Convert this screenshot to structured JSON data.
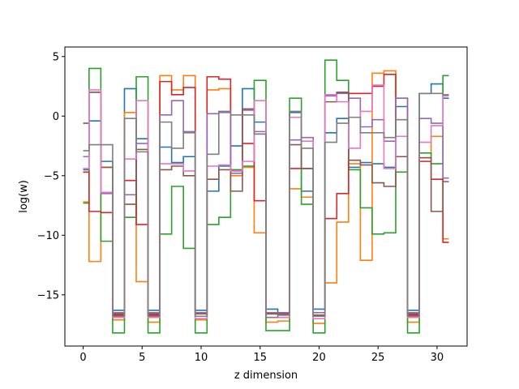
{
  "chart_data": {
    "type": "line",
    "drawstyle": "steps-mid",
    "xlabel": "z dimension",
    "ylabel": "log(w)",
    "xlim": [
      -1.55,
      32.55
    ],
    "ylim": [
      -19.3,
      5.8
    ],
    "xticks": [
      0,
      5,
      10,
      15,
      20,
      25,
      30
    ],
    "yticks": [
      5,
      0,
      -5,
      -10,
      -15
    ],
    "ytick_labels": [
      "5",
      "0",
      "−5",
      "−10",
      "−15"
    ],
    "grid": false,
    "x": [
      0,
      1,
      2,
      3,
      4,
      5,
      6,
      7,
      8,
      9,
      10,
      11,
      12,
      13,
      14,
      15,
      16,
      17,
      18,
      19,
      20,
      21,
      22,
      23,
      24,
      25,
      26,
      27,
      28,
      29,
      30,
      31
    ],
    "series": [
      {
        "color": "#1f77b4",
        "values": [
          -4.5,
          -0.4,
          -3.8,
          -16.3,
          2.3,
          -1.9,
          -16.3,
          -2.6,
          -3.9,
          -3.4,
          -16.3,
          -6.3,
          -4.2,
          -2.5,
          2.3,
          -0.5,
          -16.2,
          -16.5,
          0.3,
          -6.3,
          -16.2,
          -1.4,
          -0.2,
          -4.3,
          -3.9,
          -4.0,
          -4.3,
          0.8,
          -16.3,
          1.9,
          2.7,
          1.5
        ]
      },
      {
        "color": "#ff7f0e",
        "values": [
          -7.2,
          -12.2,
          -4.3,
          -17.1,
          0.3,
          -13.9,
          -17.3,
          3.4,
          2.2,
          3.4,
          -17.1,
          2.2,
          2.3,
          -5.0,
          -4.3,
          -9.8,
          -17.3,
          -17.2,
          -6.1,
          -6.8,
          -17.4,
          -14.0,
          -8.9,
          -4.0,
          -12.1,
          3.6,
          3.8,
          1.5,
          -17.3,
          -3.5,
          -1.7,
          -10.3
        ]
      },
      {
        "color": "#2ca02c",
        "values": [
          -7.3,
          4.0,
          -10.5,
          -18.2,
          -8.5,
          3.3,
          -18.2,
          -9.9,
          -5.9,
          -11.1,
          -18.2,
          -9.1,
          -8.5,
          -4.5,
          -4.2,
          3.0,
          -18.0,
          -18.0,
          1.5,
          -7.4,
          -18.2,
          4.7,
          3.0,
          -4.5,
          -7.7,
          -9.9,
          -9.8,
          -4.7,
          -18.2,
          -3.1,
          -4.0,
          3.4
        ]
      },
      {
        "color": "#d62728",
        "values": [
          -4.7,
          -8.0,
          -8.1,
          -16.7,
          -5.4,
          -9.1,
          -16.7,
          2.9,
          1.8,
          2.4,
          -16.8,
          3.3,
          3.1,
          -4.6,
          -2.3,
          -7.1,
          -16.6,
          -16.7,
          -4.4,
          -4.4,
          -16.7,
          -8.6,
          -6.5,
          1.9,
          1.9,
          2.5,
          3.5,
          -1.7,
          -16.7,
          -3.8,
          -5.3,
          -10.6
        ]
      },
      {
        "color": "#9467bd",
        "values": [
          -3.4,
          2.0,
          -6.5,
          -16.5,
          -6.6,
          -2.3,
          -16.5,
          0.1,
          1.3,
          -1.4,
          -16.5,
          0.2,
          0.3,
          -4.8,
          0.5,
          -1.3,
          -16.5,
          -16.5,
          -2.0,
          -1.8,
          -16.5,
          1.7,
          1.9,
          1.5,
          -0.9,
          -0.3,
          -2.1,
          1.5,
          -16.5,
          -0.2,
          -0.6,
          -5.2
        ]
      },
      {
        "color": "#8c564b",
        "values": [
          -0.6,
          2.0,
          -4.3,
          -16.6,
          -7.4,
          -2.8,
          -16.6,
          -4.5,
          -4.2,
          -5.0,
          -16.6,
          -5.3,
          -4.5,
          -6.3,
          0.6,
          -1.5,
          -16.6,
          -16.6,
          -2.4,
          -4.4,
          -16.7,
          1.2,
          2.0,
          -3.7,
          -4.1,
          -5.6,
          -5.9,
          -3.4,
          -16.6,
          -3.5,
          -8.0,
          -5.5
        ]
      },
      {
        "color": "#e377c2",
        "values": [
          -4.4,
          2.2,
          -6.4,
          -16.9,
          -3.6,
          1.3,
          -16.9,
          -4.0,
          -4.0,
          -4.6,
          -17.0,
          -4.2,
          -4.1,
          -4.6,
          -3.8,
          1.3,
          -16.9,
          -16.9,
          -0.1,
          -2.1,
          -17.0,
          1.8,
          1.2,
          -2.7,
          0.4,
          2.6,
          -4.4,
          -1.7,
          -16.9,
          -2.2,
          -0.8,
          1.7
        ]
      },
      {
        "color": "#7f7f7f",
        "values": [
          -2.9,
          -2.4,
          -2.4,
          -16.8,
          -0.2,
          -3.0,
          -16.8,
          -0.5,
          -2.7,
          -1.3,
          -16.8,
          -3.2,
          0.4,
          0.1,
          0.1,
          -1.5,
          -16.9,
          -16.7,
          0.4,
          -2.7,
          -16.8,
          -2.2,
          -0.6,
          -0.1,
          -1.4,
          -1.4,
          -1.8,
          -0.3,
          -16.8,
          1.9,
          1.9,
          1.8
        ]
      }
    ]
  }
}
